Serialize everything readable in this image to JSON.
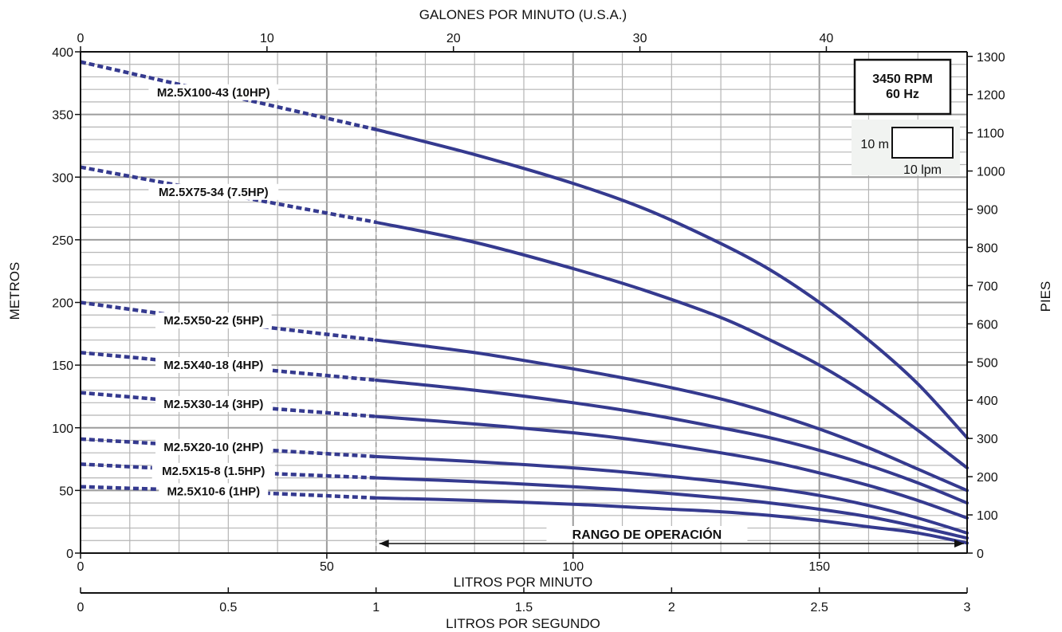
{
  "chart_data": {
    "type": "line",
    "x_axis": {
      "label": "LITROS POR MINUTO",
      "range": [
        0,
        180
      ],
      "ticks": [
        0,
        50,
        100,
        150
      ]
    },
    "top_axis": {
      "label": "GALONES POR MINUTO (U.S.A.)",
      "range": [
        0,
        47.55
      ],
      "ticks": [
        0,
        10,
        20,
        30,
        40
      ]
    },
    "bottom_axis": {
      "label": "LITROS POR SEGUNDO",
      "range": [
        0,
        3
      ],
      "ticks": [
        0,
        0.5,
        1,
        1.5,
        2,
        2.5,
        3
      ]
    },
    "y_left": {
      "label": "METROS",
      "range": [
        0,
        400
      ],
      "ticks": [
        0,
        50,
        100,
        150,
        200,
        250,
        300,
        350,
        400
      ]
    },
    "y_right": {
      "label": "PIES",
      "range": [
        0,
        1312
      ],
      "ticks": [
        0,
        100,
        200,
        300,
        400,
        500,
        600,
        700,
        800,
        900,
        1000,
        1100,
        1200,
        1300
      ]
    },
    "grid": true,
    "operating_range": {
      "from": 60,
      "to": 180,
      "label": "RANGO DE OPERACIÓN"
    },
    "info_box": {
      "line1": "3450 RPM",
      "line2": "60 Hz"
    },
    "scale_box": {
      "vertical": "10 m",
      "horizontal": "10 lpm"
    },
    "series": [
      {
        "name": "M2.5X100-43 (10HP)",
        "x": [
          0,
          30,
          60,
          80,
          100,
          115,
          130,
          140,
          150,
          160,
          170,
          180
        ],
        "y": [
          392,
          365,
          338,
          318,
          295,
          274,
          247,
          226,
          200,
          170,
          135,
          92
        ]
      },
      {
        "name": "M2.5X75-34 (7.5HP)",
        "x": [
          0,
          30,
          60,
          80,
          100,
          115,
          130,
          140,
          150,
          160,
          170,
          180
        ],
        "y": [
          308,
          286,
          264,
          248,
          227,
          209,
          188,
          170,
          150,
          126,
          98,
          68
        ]
      },
      {
        "name": "M2.5X50-22 (5HP)",
        "x": [
          0,
          30,
          60,
          80,
          100,
          115,
          130,
          140,
          150,
          160,
          170,
          180
        ],
        "y": [
          200,
          184,
          170,
          160,
          147,
          136,
          123,
          112,
          99,
          84,
          67,
          50
        ]
      },
      {
        "name": "M2.5X40-18 (4HP)",
        "x": [
          0,
          30,
          60,
          80,
          100,
          115,
          130,
          140,
          150,
          160,
          170,
          180
        ],
        "y": [
          160,
          149,
          138,
          130,
          120,
          111,
          100,
          92,
          82,
          70,
          56,
          40
        ]
      },
      {
        "name": "M2.5X30-14 (3HP)",
        "x": [
          0,
          30,
          60,
          80,
          100,
          115,
          130,
          140,
          150,
          160,
          170,
          180
        ],
        "y": [
          128,
          118,
          109,
          103,
          96,
          89,
          80,
          73,
          64,
          54,
          42,
          28
        ]
      },
      {
        "name": "M2.5X20-10 (2HP)",
        "x": [
          0,
          30,
          60,
          80,
          100,
          115,
          130,
          140,
          150,
          160,
          170,
          180
        ],
        "y": [
          91,
          84,
          77,
          73,
          68,
          63,
          57,
          52,
          46,
          38,
          28,
          16
        ]
      },
      {
        "name": "M2.5X15-8 (1.5HP)",
        "x": [
          0,
          30,
          60,
          80,
          100,
          115,
          130,
          140,
          150,
          160,
          170,
          180
        ],
        "y": [
          71,
          65,
          60,
          57,
          53,
          49,
          44,
          40,
          35,
          29,
          21,
          12
        ]
      },
      {
        "name": "M2.5X10-6 (1HP)",
        "x": [
          0,
          30,
          60,
          80,
          100,
          115,
          130,
          140,
          150,
          160,
          170,
          180
        ],
        "y": [
          53,
          49,
          44,
          42,
          39,
          36,
          33,
          30,
          26,
          21,
          16,
          8
        ]
      }
    ]
  }
}
